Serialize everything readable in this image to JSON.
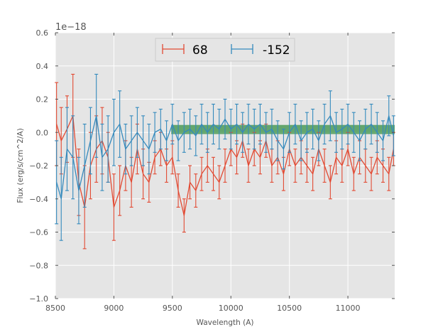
{
  "chart_data": {
    "type": "line",
    "title": "",
    "xlabel": "Wavelength (A)",
    "ylabel": "Flux (erg/s/cm^2/A)",
    "offset_text": "1e−18",
    "xlim": [
      8500,
      11400
    ],
    "ylim": [
      -1.0,
      0.6
    ],
    "x_ticks": [
      8500,
      9000,
      9500,
      10000,
      10500,
      11000
    ],
    "x_tick_labels": [
      "8500",
      "9000",
      "9500",
      "10000",
      "10500",
      "11000"
    ],
    "y_ticks": [
      -1.0,
      -0.8,
      -0.6,
      -0.4,
      -0.2,
      0.0,
      0.2,
      0.4,
      0.6
    ],
    "y_tick_labels": [
      "−1.0",
      "−0.8",
      "−0.6",
      "−0.4",
      "−0.2",
      "0.0",
      "0.2",
      "0.4",
      "0.6"
    ],
    "grid": true,
    "legend_position": "top-center",
    "error_bars": true,
    "band": {
      "x_start": 9490,
      "x_end": 11400,
      "y_low": -0.01,
      "y_high": 0.045,
      "color": "#2e8b3a"
    },
    "series": [
      {
        "name": "68",
        "color": "#e24a33",
        "x": [
          8510,
          8550,
          8600,
          8650,
          8700,
          8750,
          8800,
          8850,
          8900,
          8950,
          9000,
          9050,
          9100,
          9150,
          9200,
          9250,
          9300,
          9350,
          9400,
          9450,
          9500,
          9550,
          9600,
          9650,
          9700,
          9750,
          9800,
          9850,
          9900,
          9950,
          10000,
          10050,
          10100,
          10150,
          10200,
          10250,
          10300,
          10350,
          10400,
          10450,
          10500,
          10550,
          10600,
          10650,
          10700,
          10750,
          10800,
          10850,
          10900,
          10950,
          11000,
          11050,
          11100,
          11150,
          11200,
          11250,
          11300,
          11350,
          11390
        ],
        "values": [
          0.05,
          -0.05,
          0.02,
          0.1,
          -0.3,
          -0.45,
          -0.2,
          -0.1,
          -0.05,
          -0.15,
          -0.45,
          -0.35,
          -0.2,
          -0.3,
          -0.1,
          -0.25,
          -0.3,
          -0.15,
          -0.1,
          -0.2,
          -0.15,
          -0.35,
          -0.5,
          -0.3,
          -0.35,
          -0.25,
          -0.2,
          -0.25,
          -0.3,
          -0.2,
          -0.1,
          -0.15,
          -0.05,
          -0.2,
          -0.1,
          -0.15,
          -0.05,
          -0.2,
          -0.15,
          -0.25,
          -0.1,
          -0.2,
          -0.15,
          -0.2,
          -0.25,
          -0.1,
          -0.2,
          -0.3,
          -0.15,
          -0.2,
          -0.1,
          -0.25,
          -0.15,
          -0.2,
          -0.25,
          -0.15,
          -0.2,
          -0.25,
          -0.1
        ],
        "errors": [
          0.25,
          0.2,
          0.2,
          0.25,
          0.2,
          0.25,
          0.2,
          0.2,
          0.2,
          0.15,
          0.2,
          0.15,
          0.15,
          0.15,
          0.15,
          0.15,
          0.12,
          0.1,
          0.1,
          0.1,
          0.1,
          0.1,
          0.1,
          0.1,
          0.1,
          0.1,
          0.1,
          0.1,
          0.1,
          0.1,
          0.1,
          0.1,
          0.1,
          0.1,
          0.1,
          0.1,
          0.1,
          0.1,
          0.1,
          0.1,
          0.1,
          0.1,
          0.1,
          0.1,
          0.1,
          0.1,
          0.1,
          0.1,
          0.1,
          0.1,
          0.1,
          0.1,
          0.1,
          0.1,
          0.1,
          0.1,
          0.1,
          0.1,
          0.1
        ]
      },
      {
        "name": "-152",
        "color": "#348abd",
        "x": [
          8510,
          8550,
          8600,
          8650,
          8700,
          8750,
          8800,
          8850,
          8900,
          8950,
          9000,
          9050,
          9100,
          9150,
          9200,
          9250,
          9300,
          9350,
          9400,
          9450,
          9500,
          9550,
          9600,
          9650,
          9700,
          9750,
          9800,
          9850,
          9900,
          9950,
          10000,
          10050,
          10100,
          10150,
          10200,
          10250,
          10300,
          10350,
          10400,
          10450,
          10500,
          10550,
          10600,
          10650,
          10700,
          10750,
          10800,
          10850,
          10900,
          10950,
          11000,
          11050,
          11100,
          11150,
          11200,
          11250,
          11300,
          11350,
          11390
        ],
        "values": [
          -0.3,
          -0.4,
          -0.1,
          -0.15,
          -0.35,
          -0.2,
          -0.05,
          0.1,
          -0.15,
          -0.1,
          0.0,
          0.05,
          -0.1,
          -0.05,
          0.0,
          -0.05,
          -0.1,
          0.0,
          0.02,
          -0.05,
          0.05,
          -0.05,
          0.0,
          0.02,
          -0.02,
          0.05,
          0.0,
          0.05,
          0.02,
          0.08,
          0.02,
          0.05,
          0.0,
          0.05,
          0.02,
          0.05,
          0.0,
          0.02,
          -0.05,
          -0.1,
          0.0,
          0.05,
          -0.05,
          0.0,
          0.02,
          -0.05,
          0.05,
          0.1,
          0.0,
          0.02,
          0.05,
          0.0,
          -0.05,
          0.02,
          0.05,
          0.0,
          -0.05,
          0.1,
          -0.02
        ],
        "errors": [
          0.25,
          0.25,
          0.25,
          0.25,
          0.2,
          0.25,
          0.2,
          0.25,
          0.2,
          0.2,
          0.2,
          0.2,
          0.15,
          0.15,
          0.15,
          0.15,
          0.15,
          0.12,
          0.12,
          0.12,
          0.12,
          0.12,
          0.12,
          0.12,
          0.12,
          0.12,
          0.12,
          0.12,
          0.12,
          0.12,
          0.12,
          0.12,
          0.12,
          0.12,
          0.12,
          0.12,
          0.12,
          0.12,
          0.12,
          0.12,
          0.12,
          0.12,
          0.12,
          0.12,
          0.12,
          0.12,
          0.12,
          0.15,
          0.12,
          0.12,
          0.12,
          0.12,
          0.12,
          0.12,
          0.12,
          0.12,
          0.12,
          0.12,
          0.12
        ]
      }
    ]
  }
}
